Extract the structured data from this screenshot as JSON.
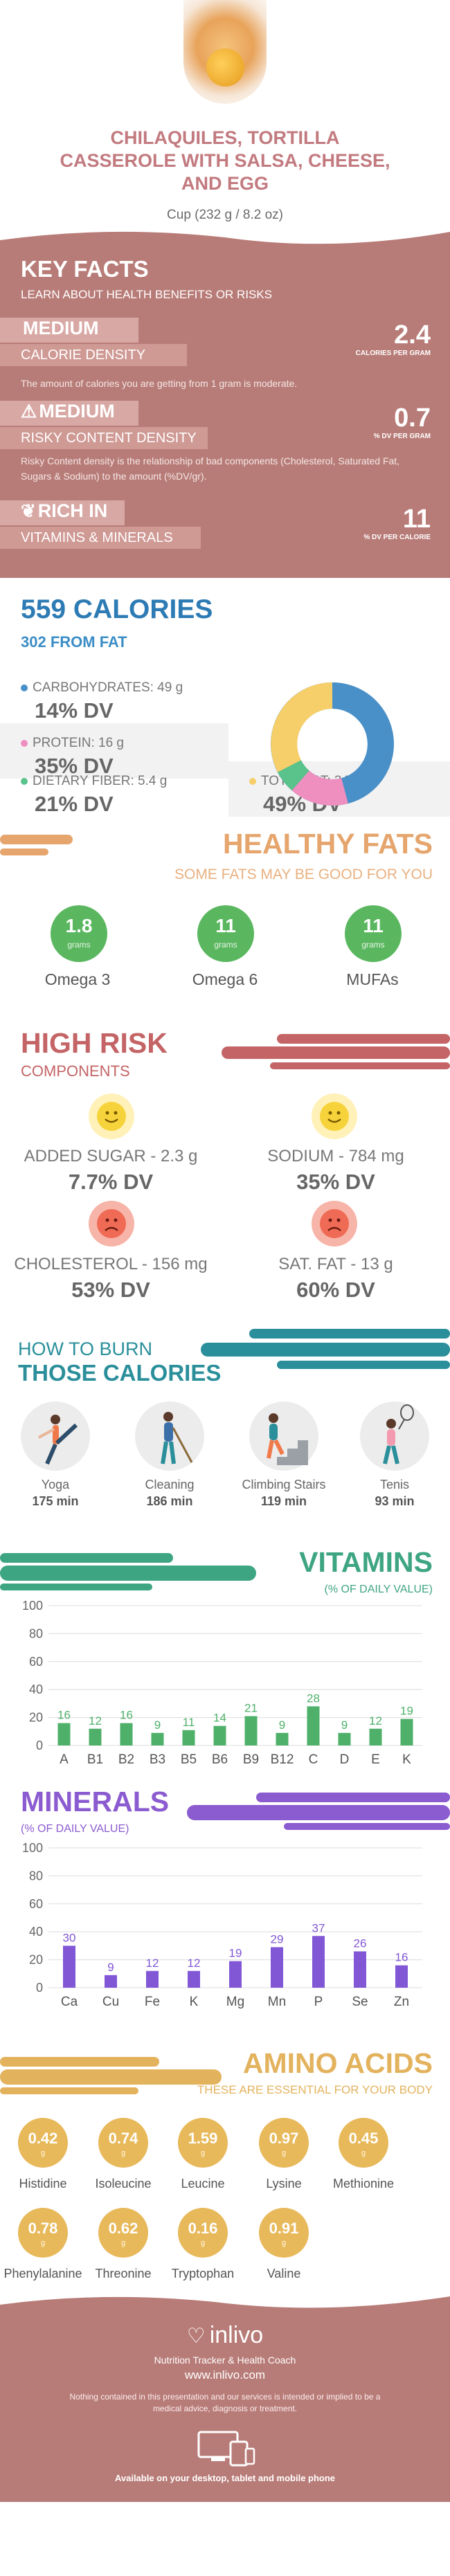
{
  "header": {
    "title_lines": [
      "CHILAQUILES, TORTILLA",
      "CASSEROLE WITH SALSA, CHEESE,",
      "AND EGG"
    ],
    "serving": "Cup (232 g / 8.2 oz)"
  },
  "key_facts": {
    "title": "KEY FACTS",
    "subtitle": "LEARN ABOUT HEALTH BENEFITS OR RISKS",
    "items": [
      {
        "level": "MEDIUM",
        "name": "CALORIE DENSITY",
        "value": "2.4",
        "unit": "CALORIES PER GRAM",
        "icon": "flame-icon",
        "icon_glyph": "",
        "description": "The amount of calories you are getting from 1 gram is moderate."
      },
      {
        "level": "MEDIUM",
        "name": "RISKY CONTENT DENSITY",
        "value": "0.7",
        "unit": "% DV PER GRAM",
        "icon": "warning-icon",
        "icon_glyph": "⚠",
        "description": "Risky Content density is the relationship of bad components (Cholesterol, Saturated Fat, Sugars & Sodium) to the amount (%DV/gr)."
      },
      {
        "level": "RICH IN",
        "name": "VITAMINS & MINERALS",
        "value": "11",
        "unit": "% DV PER CALORIE",
        "icon": "leaf-icon",
        "icon_glyph": "❦",
        "description": ""
      }
    ]
  },
  "calories": {
    "title": "559 CALORIES",
    "from_fat": "302 FROM FAT",
    "nutrients": [
      {
        "label": "CARBOHYDRATES: 49 g",
        "dv": "14% DV",
        "color": "#4a90c8"
      },
      {
        "label": "PROTEIN: 16 g",
        "dv": "35% DV",
        "color": "#ee8fbf"
      },
      {
        "label": "DIETARY FIBER: 5.4 g",
        "dv": "21% DV",
        "color": "#5ac28b"
      },
      {
        "label": "TOTAL FAT: 34 g",
        "dv": "49% DV",
        "color": "#f6cf6a"
      }
    ]
  },
  "healthy_fats": {
    "title": "HEALTHY FATS",
    "subtitle": "SOME FATS MAY BE GOOD FOR YOU",
    "unit": "grams",
    "items": [
      {
        "name": "Omega 3",
        "value": "1.8"
      },
      {
        "name": "Omega 6",
        "value": "11"
      },
      {
        "name": "MUFAs",
        "value": "11"
      }
    ]
  },
  "high_risk": {
    "title": "HIGH RISK",
    "subtitle": "COMPONENTS",
    "items": [
      {
        "name": "ADDED SUGAR - 2.3 g",
        "dv": "7.7% DV",
        "mood": "happy",
        "icon": "happy-face-icon"
      },
      {
        "name": "SODIUM - 784 mg",
        "dv": "35% DV",
        "mood": "happy",
        "icon": "happy-face-icon"
      },
      {
        "name": "CHOLESTEROL - 156 mg",
        "dv": "53% DV",
        "mood": "sad",
        "icon": "sad-face-icon"
      },
      {
        "name": "SAT. FAT - 13 g",
        "dv": "60% DV",
        "mood": "sad",
        "icon": "sad-face-icon"
      }
    ]
  },
  "burn": {
    "title_top": "HOW TO BURN",
    "title_bottom": "THOSE CALORIES",
    "activities": [
      {
        "name": "Yoga",
        "minutes": "175 min",
        "icon": "yoga-icon"
      },
      {
        "name": "Cleaning",
        "minutes": "186 min",
        "icon": "cleaning-icon"
      },
      {
        "name": "Climbing Stairs",
        "minutes": "119 min",
        "icon": "stairs-icon"
      },
      {
        "name": "Tenis",
        "minutes": "93 min",
        "icon": "tennis-icon"
      }
    ]
  },
  "chart_data": [
    {
      "type": "bar",
      "title": "VITAMINS",
      "subtitle": "(% OF DAILY VALUE)",
      "categories": [
        "A",
        "B1",
        "B2",
        "B3",
        "B5",
        "B6",
        "B9",
        "B12",
        "C",
        "D",
        "E",
        "K"
      ],
      "values": [
        16,
        12,
        16,
        9,
        11,
        14,
        21,
        9,
        28,
        9,
        12,
        19
      ],
      "ylim": [
        0,
        100
      ],
      "yticks": [
        0,
        20,
        40,
        60,
        80,
        100
      ],
      "grid": true,
      "color": "#4fb06a"
    },
    {
      "type": "bar",
      "title": "MINERALS",
      "subtitle": "(% OF DAILY VALUE)",
      "categories": [
        "Ca",
        "Cu",
        "Fe",
        "K",
        "Mg",
        "Mn",
        "P",
        "Se",
        "Zn"
      ],
      "values": [
        30,
        9,
        12,
        12,
        19,
        29,
        37,
        26,
        16
      ],
      "ylim": [
        0,
        100
      ],
      "yticks": [
        0,
        20,
        40,
        60,
        80,
        100
      ],
      "grid": true,
      "color": "#8157d6"
    }
  ],
  "amino": {
    "title": "AMINO ACIDS",
    "subtitle": "THESE ARE ESSENTIAL FOR YOUR BODY",
    "unit": "g",
    "items": [
      {
        "name": "Histidine",
        "value": "0.42"
      },
      {
        "name": "Isoleucine",
        "value": "0.74"
      },
      {
        "name": "Leucine",
        "value": "1.59"
      },
      {
        "name": "Lysine",
        "value": "0.97"
      },
      {
        "name": "Methionine",
        "value": "0.45"
      },
      {
        "name": "Phenylalanine",
        "value": "0.78"
      },
      {
        "name": "Threonine",
        "value": "0.62"
      },
      {
        "name": "Tryptophan",
        "value": "0.16"
      },
      {
        "name": "Valine",
        "value": "0.91"
      }
    ]
  },
  "footer": {
    "brand": "inlivo",
    "tagline": "Nutrition Tracker & Health Coach",
    "url": "www.inlivo.com",
    "disclaimer": "Nothing contained in this presentation and our services is intended or implied to be a medical advice, diagnosis or treatment.",
    "availability": "Available on your desktop, tablet and mobile phone"
  }
}
